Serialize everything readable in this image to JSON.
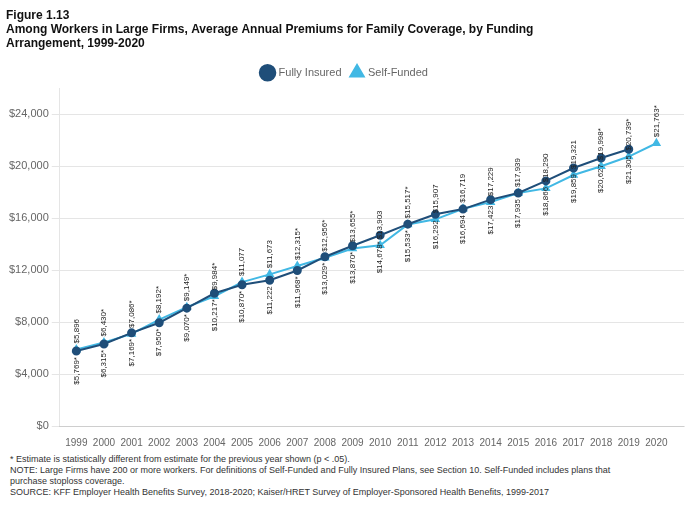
{
  "chart_data": {
    "type": "line",
    "title": [
      "Figure 1.13",
      "Among Workers in Large Firms, Average Annual Premiums for Family Coverage, by Funding",
      "Arrangement, 1999-2020"
    ],
    "x": [
      1999,
      2000,
      2001,
      2002,
      2003,
      2004,
      2005,
      2006,
      2007,
      2008,
      2009,
      2010,
      2011,
      2012,
      2013,
      2014,
      2015,
      2016,
      2017,
      2018,
      2019,
      2020
    ],
    "series": [
      {
        "name": "Fully Insured",
        "color": "#1F4E79",
        "marker": "circle",
        "values": [
          5769,
          6315,
          7169,
          7950,
          9070,
          10217,
          10870,
          11222,
          11968,
          13029,
          13870,
          14678,
          15533,
          16292,
          16694,
          17423,
          17935,
          18866,
          19859,
          20627,
          21305,
          null
        ],
        "value_labels": [
          "$5,769*",
          "$6,315*",
          "$7,169*",
          "$7,950*",
          "$9,070*",
          "$10,217*",
          "$10,870*",
          "$11,222",
          "$11,968*",
          "$13,029*",
          "$13,870*",
          "$14,678*",
          "$15,533*",
          "$16,292",
          "$16,694",
          "$17,423",
          "$17,935",
          "$18,866",
          "$19,859",
          "$20,627",
          "$21,305",
          null
        ]
      },
      {
        "name": "Self-Funded",
        "color": "#41B8E4",
        "marker": "triangle",
        "values": [
          5896,
          6430,
          7086,
          8192,
          9149,
          9984,
          11077,
          11673,
          12315,
          12956,
          13655,
          13903,
          15517,
          15907,
          16719,
          17229,
          17939,
          18290,
          19321,
          19998,
          20739,
          21763
        ],
        "value_labels": [
          "$5,896",
          "$6,430*",
          "$7,086*",
          "$8,192*",
          "$9,149*",
          "$9,984*",
          "$11,077",
          "$11,673",
          "$12,315*",
          "$12,956*",
          "$13,655*",
          "$13,903",
          "$15,517*",
          "$15,907",
          "$16,719",
          "$17,229",
          "$17,939",
          "$18,290",
          "$19,321",
          "$19,998*",
          "$20,739*",
          "$21,763*"
        ]
      }
    ],
    "xlim": [
      1998.4,
      2021.0
    ],
    "xticks": [
      1999,
      2000,
      2001,
      2002,
      2003,
      2004,
      2005,
      2006,
      2007,
      2008,
      2009,
      2010,
      2011,
      2012,
      2013,
      2014,
      2015,
      2016,
      2017,
      2018,
      2019,
      2020
    ],
    "ylim": [
      0,
      26000
    ],
    "yticks": [
      {
        "value": 0,
        "label": "$0"
      },
      {
        "value": 4000,
        "label": "$4,000"
      },
      {
        "value": 8000,
        "label": "$8,000"
      },
      {
        "value": 12000,
        "label": "$12,000"
      },
      {
        "value": 16000,
        "label": "$16,000"
      },
      {
        "value": 20000,
        "label": "$20,000"
      },
      {
        "value": 24000,
        "label": "$24,000"
      }
    ],
    "grid": "y",
    "legend": "top",
    "data_labels": true,
    "notes": [
      "* Estimate is statistically different from estimate for the previous year shown (p < .05).",
      "NOTE:  Large Firms have 200 or more workers.  For definitions of Self-Funded and Fully Insured Plans, see Section 10. Self-Funded includes plans that",
      "purchase stoploss coverage.",
      "SOURCE:  KFF Employer Health Benefits Survey, 2018-2020; Kaiser/HRET Survey of Employer-Sponsored Health Benefits, 1999-2017"
    ]
  }
}
